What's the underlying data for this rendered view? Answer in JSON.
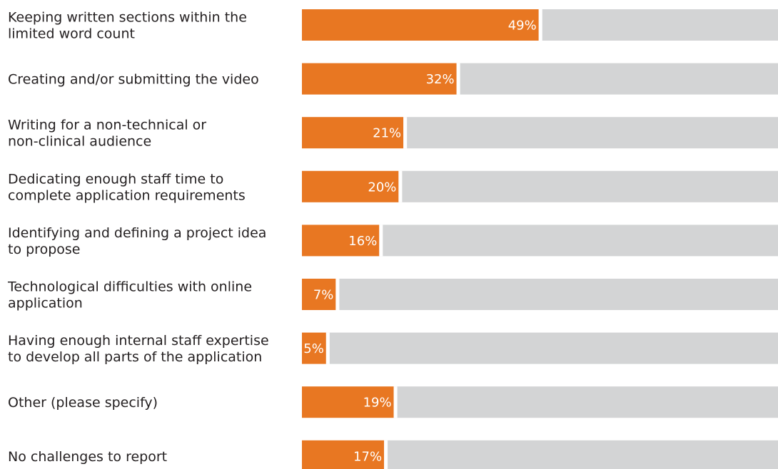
{
  "chart_data": {
    "type": "bar",
    "orientation": "horizontal",
    "stacked_remainder": true,
    "categories": [
      [
        "Keeping written sections within the",
        "limited word count"
      ],
      [
        "Creating and/or submitting the video"
      ],
      [
        "Writing for a non-technical or",
        "non-clinical audience"
      ],
      [
        "Dedicating enough staff time to",
        "complete application requirements"
      ],
      [
        "Identifying and defining a project idea",
        "to propose"
      ],
      [
        "Technological difficulties with online",
        "application"
      ],
      [
        "Having enough internal staff expertise",
        "to develop all parts of the application"
      ],
      [
        "Other (please specify)"
      ],
      [
        "No challenges to report"
      ]
    ],
    "values": [
      49,
      32,
      21,
      20,
      16,
      7,
      5,
      19,
      17
    ],
    "value_labels": [
      "49%",
      "32%",
      "21%",
      "20%",
      "16%",
      "7%",
      "5%",
      "19%",
      "17%"
    ],
    "xlim": [
      0,
      100
    ],
    "grid": false,
    "legend": "none",
    "colors": {
      "bar": "#E87722",
      "remainder": "#D3D4D5",
      "separator": "#FFFFFF",
      "label_text": "#231F20",
      "value_text": "#FFFFFF"
    }
  }
}
